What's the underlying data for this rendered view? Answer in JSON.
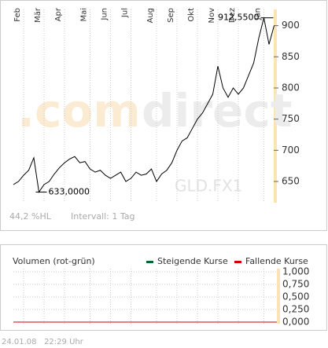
{
  "chart_data": [
    {
      "type": "line",
      "categories": [
        null,
        null,
        "Feb",
        null,
        null,
        null,
        "Mär",
        null,
        null,
        null,
        "Apr",
        null,
        null,
        null,
        null,
        "Mai",
        null,
        null,
        null,
        "Jun",
        null,
        null,
        null,
        "Jul",
        null,
        null,
        null,
        null,
        "Aug",
        null,
        null,
        null,
        "Sep",
        null,
        null,
        null,
        "Okt",
        null,
        null,
        null,
        "Nov",
        null,
        null,
        null,
        "Dez",
        null,
        null,
        null,
        null,
        "Jan",
        null,
        null
      ],
      "series": [
        {
          "color": "#000000",
          "values": [
            645,
            650,
            660,
            668,
            688,
            633,
            645,
            650,
            662,
            672,
            680,
            686,
            690,
            680,
            682,
            670,
            665,
            668,
            660,
            655,
            660,
            665,
            650,
            655,
            665,
            660,
            662,
            670,
            650,
            662,
            668,
            680,
            700,
            715,
            720,
            735,
            750,
            760,
            775,
            790,
            835,
            800,
            785,
            800,
            790,
            800,
            820,
            840,
            880,
            912.55,
            870,
            900
          ]
        }
      ],
      "ylim": [
        616,
        926
      ],
      "yticks": [
        650,
        700,
        750,
        800,
        850,
        900
      ],
      "grid": true,
      "annotations": [
        {
          "value": 912.55,
          "label": "912,5500"
        },
        {
          "value": 633,
          "label": "633,0000"
        }
      ],
      "watermark": [
        ".com",
        "direct"
      ],
      "symbol": "GLD.FX1",
      "stats": "44,2 %HL",
      "interval": "Intervall: 1 Tag"
    },
    {
      "type": "volume",
      "title": "Volumen (rot-grün)",
      "series": [
        {
          "name": "Steigende Kurse",
          "color": "#006633"
        },
        {
          "name": "Fallende Kurse",
          "color": "#cc0000"
        }
      ],
      "ylim": [
        0,
        1
      ],
      "yticks": [
        {
          "value": 1,
          "label": "1,000"
        },
        {
          "value": 0.75,
          "label": "0,750"
        },
        {
          "value": 0.5,
          "label": "0,500"
        },
        {
          "value": 0.25,
          "label": "0,250"
        },
        {
          "value": 0,
          "label": "0,000"
        }
      ],
      "grid": true,
      "timestamp": "24.01.08   22:29 Uhr"
    }
  ]
}
